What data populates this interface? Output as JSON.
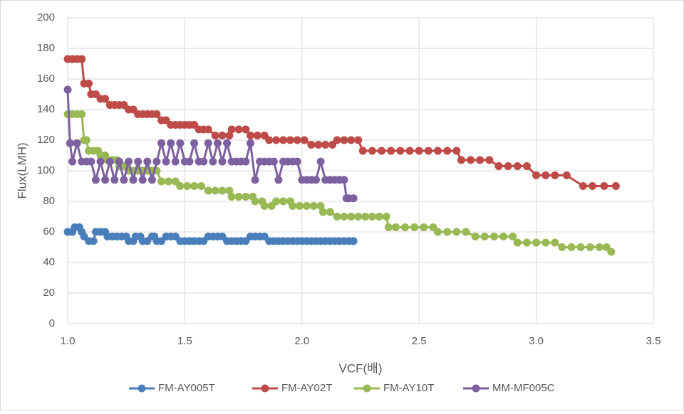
{
  "chart_data": {
    "type": "line",
    "x_label": "VCF(배)",
    "y_label": "Flux(LMH)",
    "xlim": [
      1.0,
      3.5
    ],
    "ylim": [
      0,
      200
    ],
    "xticks": [
      {
        "value": 1.0,
        "label": "1.0"
      },
      1.5,
      {
        "value": 2.0,
        "label": "2.0"
      },
      2.5,
      {
        "value": 3.0,
        "label": "3.0"
      },
      3.5
    ],
    "yticks": [
      0,
      20,
      40,
      60,
      80,
      100,
      120,
      140,
      160,
      180,
      200
    ],
    "grid": true,
    "legend": "bottom",
    "series": [
      {
        "name": "FM-AY005T",
        "color": "#4a7ebb",
        "x": [
          1.0,
          1.02,
          1.03,
          1.05,
          1.06,
          1.07,
          1.09,
          1.11,
          1.12,
          1.14,
          1.16,
          1.17,
          1.19,
          1.21,
          1.23,
          1.25,
          1.26,
          1.28,
          1.29,
          1.31,
          1.32,
          1.34,
          1.36,
          1.37,
          1.38,
          1.4,
          1.42,
          1.44,
          1.46,
          1.48,
          1.5,
          1.52,
          1.54,
          1.56,
          1.58,
          1.6,
          1.62,
          1.64,
          1.66,
          1.68,
          1.7,
          1.72,
          1.74,
          1.76,
          1.78,
          1.8,
          1.82,
          1.84,
          1.86,
          1.88,
          1.9,
          1.92,
          1.94,
          1.96,
          1.98,
          2.0,
          2.02,
          2.04,
          2.06,
          2.08,
          2.1,
          2.12,
          2.14,
          2.16,
          2.18,
          2.2,
          2.22
        ],
        "values": [
          60,
          60,
          63,
          63,
          60,
          57,
          54,
          54,
          60,
          60,
          60,
          57,
          57,
          57,
          57,
          57,
          54,
          54,
          57,
          57,
          54,
          54,
          57,
          57,
          54,
          54,
          57,
          57,
          57,
          54,
          54,
          54,
          54,
          54,
          54,
          57,
          57,
          57,
          57,
          54,
          54,
          54,
          54,
          54,
          57,
          57,
          57,
          57,
          54,
          54,
          54,
          54,
          54,
          54,
          54,
          54,
          54,
          54,
          54,
          54,
          54,
          54,
          54,
          54,
          54,
          54,
          54
        ]
      },
      {
        "name": "FM-AY02T",
        "color": "#be4b48",
        "x": [
          1.0,
          1.02,
          1.04,
          1.06,
          1.07,
          1.09,
          1.1,
          1.12,
          1.14,
          1.16,
          1.18,
          1.2,
          1.22,
          1.24,
          1.26,
          1.28,
          1.3,
          1.32,
          1.34,
          1.36,
          1.38,
          1.4,
          1.42,
          1.44,
          1.46,
          1.48,
          1.5,
          1.52,
          1.54,
          1.56,
          1.58,
          1.6,
          1.63,
          1.66,
          1.69,
          1.7,
          1.73,
          1.76,
          1.78,
          1.81,
          1.84,
          1.86,
          1.89,
          1.92,
          1.95,
          1.98,
          2.01,
          2.04,
          2.07,
          2.1,
          2.13,
          2.15,
          2.18,
          2.21,
          2.24,
          2.26,
          2.3,
          2.34,
          2.38,
          2.42,
          2.46,
          2.5,
          2.54,
          2.58,
          2.62,
          2.66,
          2.68,
          2.72,
          2.76,
          2.8,
          2.84,
          2.88,
          2.92,
          2.96,
          3.0,
          3.04,
          3.08,
          3.13,
          3.2,
          3.24,
          3.29,
          3.34
        ],
        "values": [
          173,
          173,
          173,
          173,
          157,
          157,
          150,
          150,
          147,
          147,
          143,
          143,
          143,
          143,
          140,
          140,
          137,
          137,
          137,
          137,
          137,
          133,
          133,
          130,
          130,
          130,
          130,
          130,
          130,
          127,
          127,
          127,
          123,
          123,
          123,
          127,
          127,
          127,
          123,
          123,
          123,
          120,
          120,
          120,
          120,
          120,
          120,
          117,
          117,
          117,
          117,
          120,
          120,
          120,
          120,
          113,
          113,
          113,
          113,
          113,
          113,
          113,
          113,
          113,
          113,
          113,
          107,
          107,
          107,
          107,
          103,
          103,
          103,
          103,
          97,
          97,
          97,
          97,
          90,
          90,
          90,
          90
        ]
      },
      {
        "name": "FM-AY10T",
        "color": "#98b954",
        "x": [
          1.0,
          1.02,
          1.04,
          1.06,
          1.07,
          1.08,
          1.09,
          1.11,
          1.13,
          1.14,
          1.16,
          1.17,
          1.19,
          1.21,
          1.22,
          1.24,
          1.26,
          1.28,
          1.3,
          1.32,
          1.34,
          1.36,
          1.38,
          1.4,
          1.43,
          1.46,
          1.48,
          1.51,
          1.54,
          1.57,
          1.6,
          1.63,
          1.66,
          1.69,
          1.7,
          1.73,
          1.76,
          1.79,
          1.8,
          1.83,
          1.84,
          1.87,
          1.89,
          1.92,
          1.95,
          1.96,
          1.99,
          2.02,
          2.05,
          2.08,
          2.09,
          2.12,
          2.15,
          2.18,
          2.21,
          2.24,
          2.27,
          2.3,
          2.33,
          2.36,
          2.37,
          2.4,
          2.44,
          2.48,
          2.52,
          2.56,
          2.58,
          2.62,
          2.66,
          2.7,
          2.74,
          2.78,
          2.82,
          2.86,
          2.9,
          2.92,
          2.96,
          3.0,
          3.04,
          3.08,
          3.11,
          3.15,
          3.19,
          3.23,
          3.27,
          3.3,
          3.32
        ],
        "values": [
          137,
          137,
          137,
          137,
          120,
          120,
          113,
          113,
          113,
          110,
          110,
          107,
          107,
          107,
          103,
          103,
          100,
          100,
          100,
          100,
          100,
          100,
          100,
          93,
          93,
          93,
          90,
          90,
          90,
          90,
          87,
          87,
          87,
          87,
          83,
          83,
          83,
          83,
          80,
          80,
          77,
          77,
          80,
          80,
          80,
          77,
          77,
          77,
          77,
          77,
          73,
          73,
          70,
          70,
          70,
          70,
          70,
          70,
          70,
          70,
          63,
          63,
          63,
          63,
          63,
          63,
          60,
          60,
          60,
          60,
          57,
          57,
          57,
          57,
          57,
          53,
          53,
          53,
          53,
          53,
          50,
          50,
          50,
          50,
          50,
          50,
          47
        ]
      },
      {
        "name": "MM-MF005C",
        "color": "#7d60a0",
        "x": [
          1.0,
          1.01,
          1.02,
          1.04,
          1.06,
          1.08,
          1.1,
          1.12,
          1.14,
          1.16,
          1.18,
          1.2,
          1.22,
          1.24,
          1.26,
          1.28,
          1.3,
          1.32,
          1.34,
          1.36,
          1.38,
          1.4,
          1.42,
          1.44,
          1.46,
          1.48,
          1.5,
          1.52,
          1.54,
          1.56,
          1.58,
          1.6,
          1.62,
          1.64,
          1.66,
          1.68,
          1.7,
          1.72,
          1.74,
          1.76,
          1.78,
          1.8,
          1.82,
          1.84,
          1.86,
          1.88,
          1.9,
          1.92,
          1.94,
          1.96,
          1.98,
          2.0,
          2.02,
          2.04,
          2.06,
          2.08,
          2.1,
          2.12,
          2.14,
          2.16,
          2.18,
          2.19,
          2.2,
          2.22
        ],
        "values": [
          153,
          118,
          106,
          118,
          106,
          106,
          106,
          94,
          106,
          94,
          106,
          94,
          106,
          94,
          106,
          94,
          106,
          94,
          106,
          94,
          106,
          118,
          106,
          118,
          106,
          118,
          106,
          106,
          118,
          106,
          106,
          118,
          106,
          118,
          106,
          118,
          106,
          106,
          106,
          106,
          118,
          94,
          106,
          106,
          106,
          106,
          94,
          106,
          106,
          106,
          106,
          94,
          94,
          94,
          94,
          106,
          94,
          94,
          94,
          94,
          94,
          82,
          82,
          82
        ]
      }
    ]
  }
}
